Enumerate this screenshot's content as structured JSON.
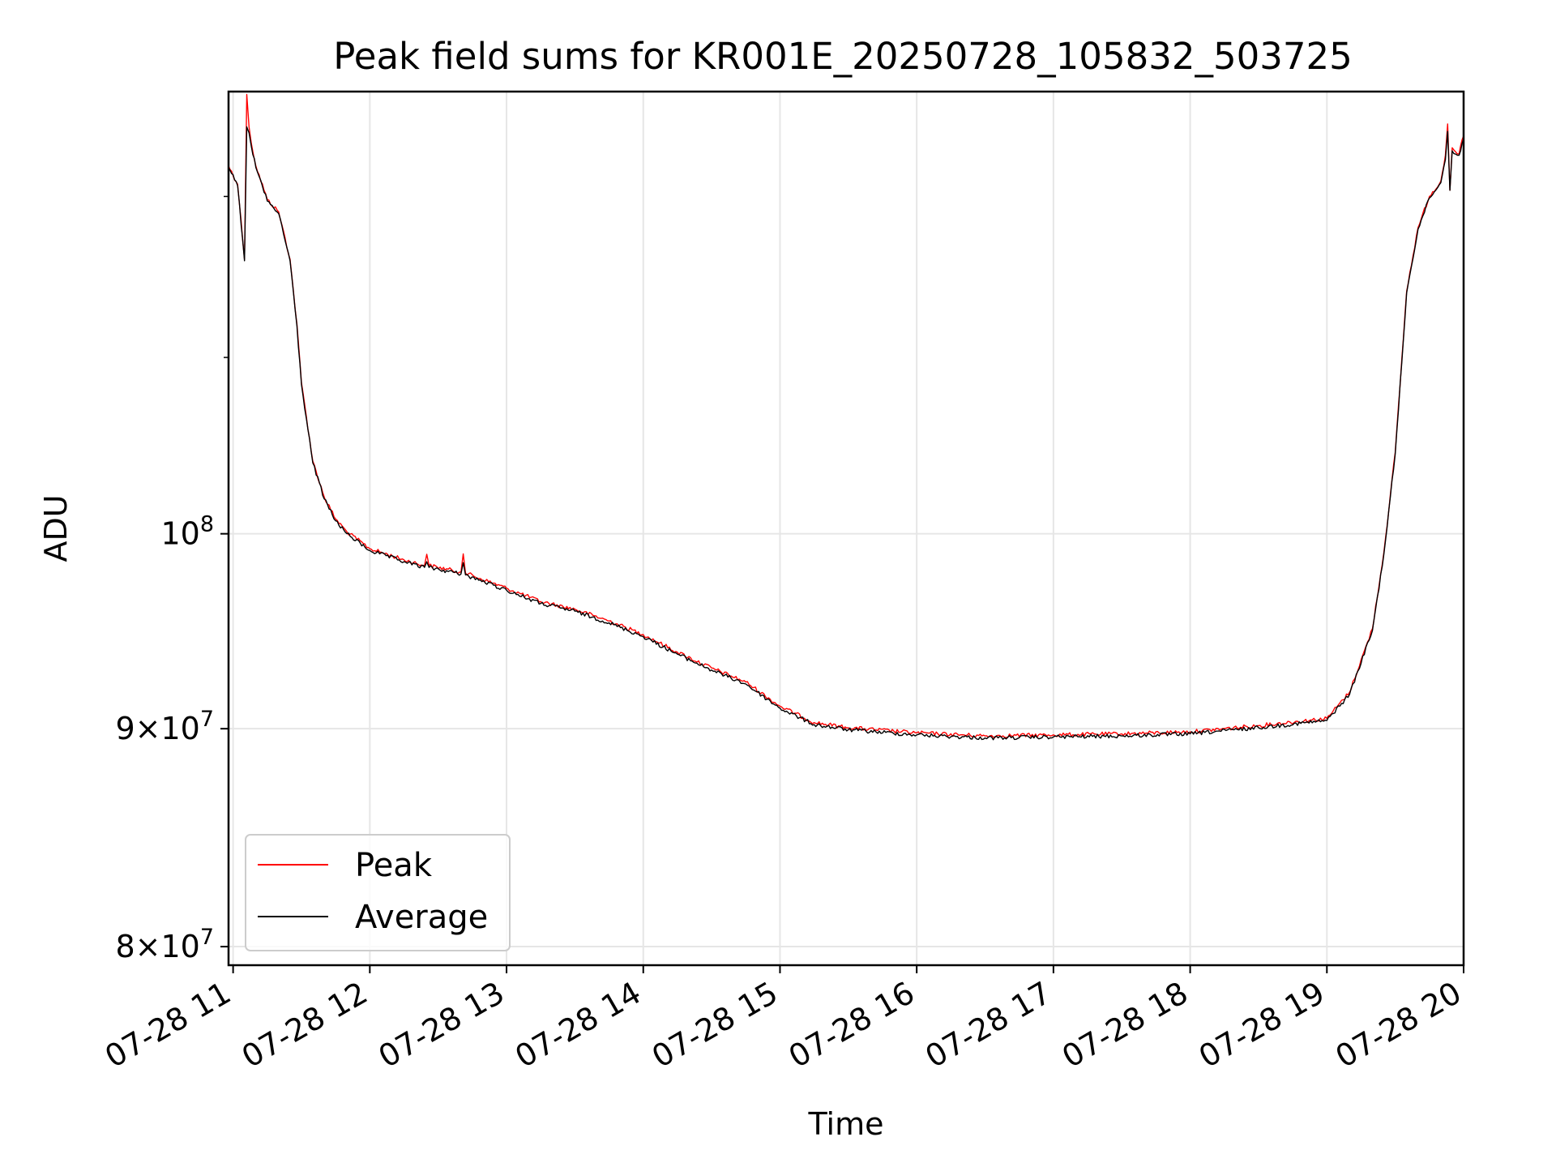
{
  "chart_data": {
    "type": "line",
    "title": "Peak field sums for KR001E_20250728_105832_503725",
    "xlabel": "Time",
    "ylabel": "ADU",
    "yscale": "log",
    "grid": true,
    "legend_position": "lower-left",
    "xlim": [
      "2025-07-28 10:58",
      "2025-07-28 20:00"
    ],
    "ylim": [
      79200000,
      127000000
    ],
    "x_ticks": [
      {
        "x": "2025-07-28 11:00",
        "label": "07-28 11"
      },
      {
        "x": "2025-07-28 12:00",
        "label": "07-28 12"
      },
      {
        "x": "2025-07-28 13:00",
        "label": "07-28 13"
      },
      {
        "x": "2025-07-28 14:00",
        "label": "07-28 14"
      },
      {
        "x": "2025-07-28 15:00",
        "label": "07-28 15"
      },
      {
        "x": "2025-07-28 16:00",
        "label": "07-28 16"
      },
      {
        "x": "2025-07-28 17:00",
        "label": "07-28 17"
      },
      {
        "x": "2025-07-28 18:00",
        "label": "07-28 18"
      },
      {
        "x": "2025-07-28 19:00",
        "label": "07-28 19"
      },
      {
        "x": "2025-07-28 20:00",
        "label": "07-28 20"
      }
    ],
    "y_ticks": [
      {
        "y": 80000000,
        "base": "8",
        "times": "×",
        "exp_base": "10",
        "exp": "7"
      },
      {
        "y": 90000000,
        "base": "9",
        "times": "×",
        "exp_base": "10",
        "exp": "7"
      },
      {
        "y": 100000000,
        "base": "",
        "times": "",
        "exp_base": "10",
        "exp": "8"
      }
    ],
    "series": [
      {
        "name": "Peak",
        "color": "#ff0000",
        "x": [
          "2025-07-28 10:58",
          "2025-07-28 11:02",
          "2025-07-28 11:05",
          "2025-07-28 11:06",
          "2025-07-28 11:07",
          "2025-07-28 11:08",
          "2025-07-28 11:10",
          "2025-07-28 11:15",
          "2025-07-28 11:20",
          "2025-07-28 11:25",
          "2025-07-28 11:28",
          "2025-07-28 11:30",
          "2025-07-28 11:35",
          "2025-07-28 11:40",
          "2025-07-28 11:45",
          "2025-07-28 11:50",
          "2025-07-28 12:00",
          "2025-07-28 12:15",
          "2025-07-28 12:24",
          "2025-07-28 12:25",
          "2025-07-28 12:26",
          "2025-07-28 12:40",
          "2025-07-28 12:41",
          "2025-07-28 12:42",
          "2025-07-28 13:00",
          "2025-07-28 13:15",
          "2025-07-28 13:30",
          "2025-07-28 13:45",
          "2025-07-28 14:00",
          "2025-07-28 14:15",
          "2025-07-28 14:30",
          "2025-07-28 14:45",
          "2025-07-28 15:00",
          "2025-07-28 15:15",
          "2025-07-28 15:30",
          "2025-07-28 16:00",
          "2025-07-28 16:30",
          "2025-07-28 17:00",
          "2025-07-28 17:30",
          "2025-07-28 18:00",
          "2025-07-28 18:30",
          "2025-07-28 19:00",
          "2025-07-28 19:10",
          "2025-07-28 19:20",
          "2025-07-28 19:25",
          "2025-07-28 19:30",
          "2025-07-28 19:35",
          "2025-07-28 19:40",
          "2025-07-28 19:45",
          "2025-07-28 19:50",
          "2025-07-28 19:52",
          "2025-07-28 19:53",
          "2025-07-28 19:54",
          "2025-07-28 19:55",
          "2025-07-28 19:58",
          "2025-07-28 20:00"
        ],
        "y": [
          122000000,
          120800000,
          116000000,
          126800000,
          124600000,
          123500000,
          122000000,
          119800000,
          119000000,
          116000000,
          112000000,
          108500000,
          104000000,
          102000000,
          100800000,
          100100000,
          99200000,
          98600000,
          98300000,
          98900000,
          98300000,
          97950000,
          98920000,
          97900000,
          97100000,
          96400000,
          96000000,
          95400000,
          94700000,
          93800000,
          93000000,
          92300000,
          91100000,
          90300000,
          90050000,
          89800000,
          89650000,
          89700000,
          89750000,
          89850000,
          90150000,
          90500000,
          91800000,
          95000000,
          99000000,
          104500000,
          114000000,
          118000000,
          120000000,
          121000000,
          122700000,
          124800000,
          120400000,
          123200000,
          122800000,
          124000000
        ]
      },
      {
        "name": "Average",
        "color": "#000000",
        "x": [
          "2025-07-28 10:58",
          "2025-07-28 11:02",
          "2025-07-28 11:05",
          "2025-07-28 11:06",
          "2025-07-28 11:07",
          "2025-07-28 11:08",
          "2025-07-28 11:10",
          "2025-07-28 11:15",
          "2025-07-28 11:20",
          "2025-07-28 11:25",
          "2025-07-28 11:28",
          "2025-07-28 11:30",
          "2025-07-28 11:35",
          "2025-07-28 11:40",
          "2025-07-28 11:45",
          "2025-07-28 11:50",
          "2025-07-28 12:00",
          "2025-07-28 12:15",
          "2025-07-28 12:24",
          "2025-07-28 12:25",
          "2025-07-28 12:26",
          "2025-07-28 12:40",
          "2025-07-28 12:41",
          "2025-07-28 12:42",
          "2025-07-28 13:00",
          "2025-07-28 13:15",
          "2025-07-28 13:30",
          "2025-07-28 13:45",
          "2025-07-28 14:00",
          "2025-07-28 14:15",
          "2025-07-28 14:30",
          "2025-07-28 14:45",
          "2025-07-28 15:00",
          "2025-07-28 15:15",
          "2025-07-28 15:30",
          "2025-07-28 16:00",
          "2025-07-28 16:30",
          "2025-07-28 17:00",
          "2025-07-28 17:30",
          "2025-07-28 18:00",
          "2025-07-28 18:30",
          "2025-07-28 19:00",
          "2025-07-28 19:10",
          "2025-07-28 19:20",
          "2025-07-28 19:25",
          "2025-07-28 19:30",
          "2025-07-28 19:35",
          "2025-07-28 19:40",
          "2025-07-28 19:45",
          "2025-07-28 19:50",
          "2025-07-28 19:52",
          "2025-07-28 19:53",
          "2025-07-28 19:54",
          "2025-07-28 19:55",
          "2025-07-28 19:58",
          "2025-07-28 20:00"
        ],
        "y": [
          121900000,
          120700000,
          115900000,
          124600000,
          124200000,
          123300000,
          121900000,
          119700000,
          118900000,
          115900000,
          111900000,
          108400000,
          103900000,
          101900000,
          100700000,
          100000000,
          99100000,
          98500000,
          98200000,
          98500000,
          98200000,
          97850000,
          98450000,
          97800000,
          97000000,
          96300000,
          95900000,
          95300000,
          94600000,
          93700000,
          92900000,
          92200000,
          91000000,
          90200000,
          89950000,
          89700000,
          89550000,
          89600000,
          89650000,
          89750000,
          90050000,
          90400000,
          91700000,
          94900000,
          98900000,
          104400000,
          113900000,
          117900000,
          119900000,
          120900000,
          122400000,
          124300000,
          120400000,
          123000000,
          122700000,
          123800000
        ]
      }
    ]
  }
}
